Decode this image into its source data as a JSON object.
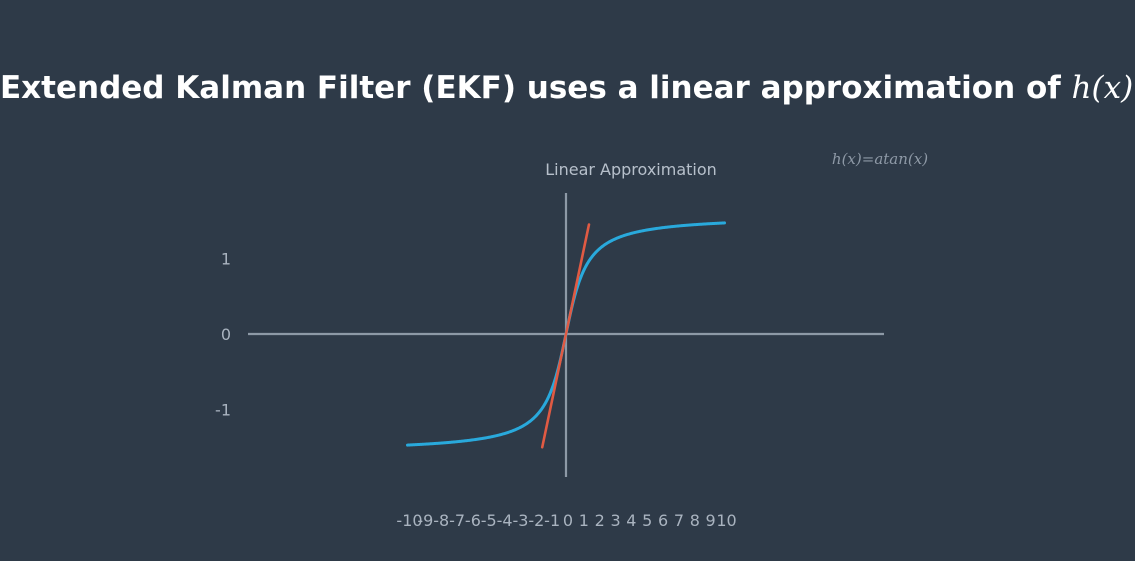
{
  "slide": {
    "title_prefix": "Extended Kalman Filter (EKF) uses a linear approximation of ",
    "title_math": "h(x)",
    "title_suffix": "!"
  },
  "chart_data": {
    "type": "line",
    "title": "Extended Kalman Filter (EKF) uses a linear approximation of h(x)!",
    "xlabel": "",
    "ylabel": "",
    "xlim": [
      -10,
      10
    ],
    "ylim": [
      -1.9,
      1.8
    ],
    "x_ticks": [
      -10,
      -9,
      -8,
      -7,
      -6,
      -5,
      -4,
      -3,
      -2,
      -1,
      0,
      1,
      2,
      3,
      4,
      5,
      6,
      7,
      8,
      9,
      10
    ],
    "x_tick_labels": [
      "-10",
      "-9",
      "-8",
      "-7",
      "-6",
      "-5",
      "-4",
      "-3",
      "-2",
      "-1",
      "0",
      "1",
      "2",
      "3",
      "4",
      "5",
      "6",
      "7",
      "8",
      "9",
      "10"
    ],
    "y_ticks": [
      1,
      0,
      -1
    ],
    "y_tick_labels": [
      "1",
      "0",
      "-1"
    ],
    "grid": false,
    "series": [
      {
        "name": "h(x)=atan(x)",
        "function": "atan",
        "x_range": [
          -10,
          10
        ],
        "color": "#29a9dc"
      },
      {
        "name": "Linear Approximation",
        "function": "linear",
        "slope": 1,
        "intercept": 0,
        "x_range": [
          -1.5,
          1.45
        ],
        "color": "#e05a43"
      }
    ],
    "annotations": {
      "linear_label": "Linear Approximation",
      "function_label": "h(x)=atan(x)"
    },
    "colors": {
      "axis": "#8d99a6",
      "curve": "#29a9dc",
      "tangent": "#e05a43",
      "background": "#2e3a48"
    }
  }
}
